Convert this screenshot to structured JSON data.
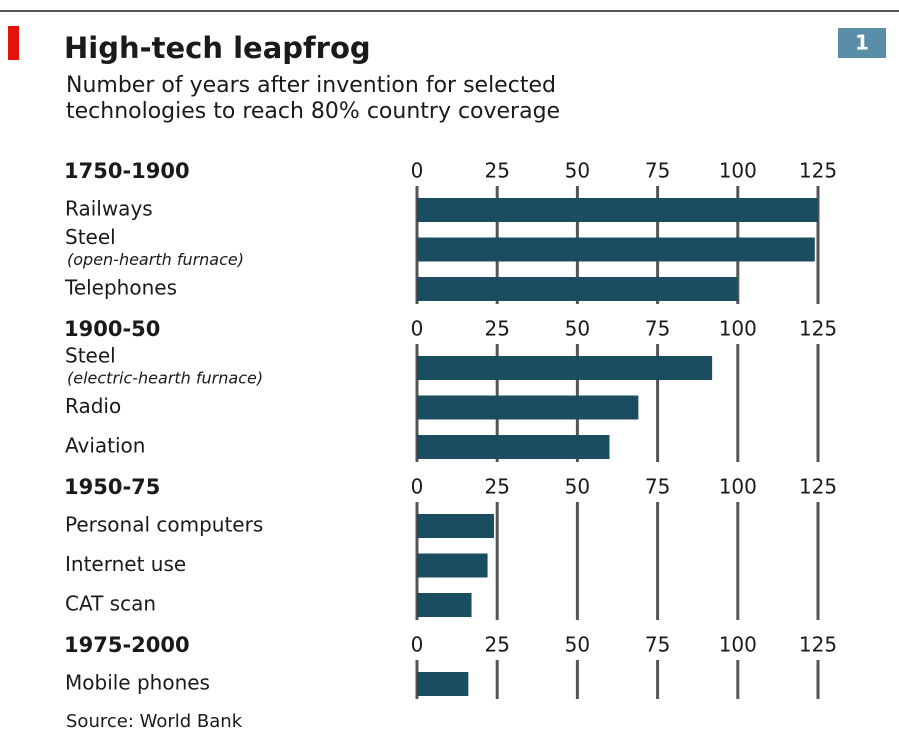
{
  "title": "High-tech leapfrog",
  "badge": "1",
  "subtitle": [
    "Number of years after invention for selected",
    "technologies to reach 80% country coverage"
  ],
  "source": "Source: World Bank",
  "chart_data": [
    {
      "type": "bar",
      "title": "1750-1900",
      "categories": [
        "Railways",
        "Steel",
        "Telephones"
      ],
      "category_notes": [
        null,
        "(open-hearth furnace)",
        null
      ],
      "values": [
        125,
        124,
        100
      ],
      "color": "#1b4d60",
      "xlim": [
        0,
        125
      ],
      "xticks": [
        0,
        25,
        50,
        75,
        100,
        125
      ],
      "grid": true
    },
    {
      "type": "bar",
      "title": "1900-50",
      "categories": [
        "Steel",
        "Radio",
        "Aviation"
      ],
      "category_notes": [
        "(electric-hearth furnace)",
        null,
        null
      ],
      "values": [
        92,
        69,
        60
      ],
      "color": "#1b4d60",
      "xlim": [
        0,
        125
      ],
      "xticks": [
        0,
        25,
        50,
        75,
        100,
        125
      ],
      "grid": true
    },
    {
      "type": "bar",
      "title": "1950-75",
      "categories": [
        "Personal computers",
        "Internet use",
        "CAT scan"
      ],
      "values": [
        24,
        22,
        17
      ],
      "color": "#1b4d60",
      "xlim": [
        0,
        125
      ],
      "xticks": [
        0,
        25,
        50,
        75,
        100,
        125
      ],
      "grid": true
    },
    {
      "type": "bar",
      "title": "1975-2000",
      "categories": [
        "Mobile phones"
      ],
      "values": [
        16
      ],
      "color": "#1b4d60",
      "xlim": [
        0,
        125
      ],
      "xticks": [
        0,
        25,
        50,
        75,
        100,
        125
      ],
      "grid": true
    }
  ]
}
